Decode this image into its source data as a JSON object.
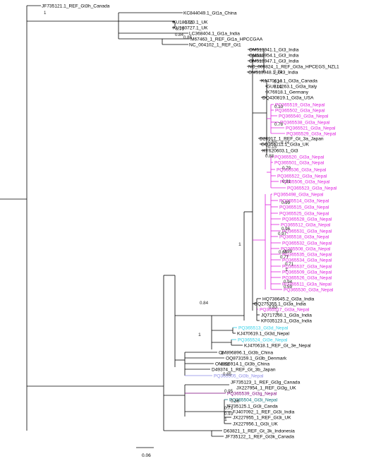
{
  "colors": {
    "default": "#000000",
    "magenta": "#e020e0",
    "cyan": "#30d0e8",
    "lavender": "#8a8ae6",
    "purple": "#7a007a",
    "teal": "#0a6e7a"
  },
  "scale_bar": {
    "label": "0.06"
  },
  "taxa": [
    {
      "label": "JF735121.1_REF_Gt3h_Canada",
      "color": "default"
    },
    {
      "label": "KC844049.1_Gt1a_China",
      "color": "default"
    },
    {
      "label": "KU180720.1_UK",
      "color": "default"
    },
    {
      "label": "KU180727.1_UK",
      "color": "default"
    },
    {
      "label": "LC368404.1_Gt1a_India",
      "color": "default"
    },
    {
      "label": "M67463_1_REF_Gt1a_HPCCGAA",
      "color": "default"
    },
    {
      "label": "NC_004102_1_REF_Gt1",
      "color": "default"
    },
    {
      "label": "OM513941.1_Gt3_India",
      "color": "default"
    },
    {
      "label": "OM513954.1_Gt3_India",
      "color": "default"
    },
    {
      "label": "OM513947.1_Gt3_India",
      "color": "default"
    },
    {
      "label": "NC_009824_1_REF_Gt3a_HPCEGS_NZL1",
      "color": "default"
    },
    {
      "label": "OM513948.1_Gt3_India",
      "color": "default"
    },
    {
      "label": "KJ470614.1_Gt3a_Canada",
      "color": "default"
    },
    {
      "label": "GU814263.1_Gt3a_Italy",
      "color": "default"
    },
    {
      "label": "X76918.1_Germany",
      "color": "default"
    },
    {
      "label": "DQ430819.1_Gt3a_USA",
      "color": "default"
    },
    {
      "label": "PQ365519_Gt3a_Nepal",
      "color": "magenta"
    },
    {
      "label": "PQ365502_Gt3a_Nepal",
      "color": "magenta"
    },
    {
      "label": "PQ365540_Gt3a_Nepal",
      "color": "magenta"
    },
    {
      "label": "PQ365538_Gt3a_Nepal",
      "color": "magenta"
    },
    {
      "label": "PQ365521_Gt3a_Nepal",
      "color": "magenta"
    },
    {
      "label": "PQ365529_Gt3a_Nepal",
      "color": "magenta"
    },
    {
      "label": "D28917_1_REF_Gt_3a_Japan",
      "color": "default"
    },
    {
      "label": "GQ356211.1_Gt3a_UK",
      "color": "default"
    },
    {
      "label": "KY620603.1_Gt3",
      "color": "default"
    },
    {
      "label": "PQ365520_Gt3a_Nepal",
      "color": "magenta"
    },
    {
      "label": "PQ365501_Gt3a_Nepal",
      "color": "magenta"
    },
    {
      "label": "PQ365536_Gt3a_Nepal",
      "color": "magenta"
    },
    {
      "label": "PQ365522_Gt3a_Nepal",
      "color": "magenta"
    },
    {
      "label": "PQ365506_Gt3a_Nepal",
      "color": "magenta"
    },
    {
      "label": "PQ365523_Gt3a_Nepal",
      "color": "magenta"
    },
    {
      "label": "PQ365498_Gt3a_Nepal",
      "color": "magenta"
    },
    {
      "label": "PQ365514_Gt3a_Nepal",
      "color": "magenta"
    },
    {
      "label": "PQ365515_Gt3a_Nepal",
      "color": "magenta"
    },
    {
      "label": "PQ365525_Gt3a_Nepal",
      "color": "magenta"
    },
    {
      "label": "PQ365528_Gt3a_Nepal",
      "color": "magenta"
    },
    {
      "label": "PQ365512_Gt3a_Nepal",
      "color": "magenta"
    },
    {
      "label": "PQ365531_Gt3a_Nepal",
      "color": "magenta"
    },
    {
      "label": "PQ365518_Gt3a_Nepal",
      "color": "magenta"
    },
    {
      "label": "PQ365532_Gt3a_Nepal",
      "color": "magenta"
    },
    {
      "label": "PQ365508_Gt3a_Nepal",
      "color": "magenta"
    },
    {
      "label": "PQ365535_Gt3a_Nepal",
      "color": "magenta"
    },
    {
      "label": "PQ365534_Gt3a_Nepal",
      "color": "magenta"
    },
    {
      "label": "PQ365537_Gt3a_Nepal",
      "color": "magenta"
    },
    {
      "label": "PQ365509_Gt3a_Nepal",
      "color": "magenta"
    },
    {
      "label": "PQ365526_Gt3a_Nepal",
      "color": "magenta"
    },
    {
      "label": "PQ365511_Gt3a_Nepal",
      "color": "magenta"
    },
    {
      "label": "PQ365530_Gt3a_Nepal",
      "color": "magenta"
    },
    {
      "label": "HQ738645.2_Gt3a_India",
      "color": "default"
    },
    {
      "label": "GQ275355.1_Gt3a_India",
      "color": "default"
    },
    {
      "label": "PQ365517_Gt3a_Nepal",
      "color": "magenta"
    },
    {
      "label": "JQ717260.1_Gt3a_India",
      "color": "default"
    },
    {
      "label": "KF035123.1_Gt3a_India",
      "color": "default"
    },
    {
      "label": "PQ365513_Gt3d_Nepal",
      "color": "cyan"
    },
    {
      "label": "KJ470619.1_Gt3d_Nepal",
      "color": "default"
    },
    {
      "label": "PQ365524_Gt3e_Nepal",
      "color": "cyan"
    },
    {
      "label": "KJ470618.1_REF_Gt_3e_Nepal",
      "color": "default"
    },
    {
      "label": "OM896896.1_Gt3b_China",
      "color": "default"
    },
    {
      "label": "OQ873159.1_Gt3b_Denmark",
      "color": "default"
    },
    {
      "label": "OM896914.1_Gt3b_China",
      "color": "default"
    },
    {
      "label": "D49374_1_REF_Gt_3b_Japan",
      "color": "default"
    },
    {
      "label": "PQ365505_Gt3b_Nepal",
      "color": "lavender"
    },
    {
      "label": "JF735123_1_REF_Gt3g_Canada",
      "color": "default"
    },
    {
      "label": "JX227954_1_REF_Gt3g_UK",
      "color": "default"
    },
    {
      "label": "PQ365539_Gt3g_Nepal",
      "color": "purple"
    },
    {
      "label": "PQ365504_Gt3i_Nepal",
      "color": "teal"
    },
    {
      "label": "JF735125.1_Gt3i_Canda",
      "color": "default"
    },
    {
      "label": "FJ407092_1_REF_Gt3i_India",
      "color": "default"
    },
    {
      "label": "JX227955_1_REF_Gt3i_UK",
      "color": "default"
    },
    {
      "label": "JX227956.1_Gt3i_UK",
      "color": "default"
    },
    {
      "label": "D63821_1_REF_Gt_3k_Indonesia",
      "color": "default"
    },
    {
      "label": "JF735122_1_REF_Gt3k_Canada",
      "color": "default"
    }
  ],
  "bootstrap": [
    {
      "label": "1"
    },
    {
      "label": "0.95"
    },
    {
      "label": "0.79"
    },
    {
      "label": "0.84"
    },
    {
      "label": "0.86"
    },
    {
      "label": "0.24"
    },
    {
      "label": "0.27"
    },
    {
      "label": "0.02"
    },
    {
      "label": "0.13"
    },
    {
      "label": "0.78"
    },
    {
      "label": "0.74"
    },
    {
      "label": "0.65"
    },
    {
      "label": "0.15"
    },
    {
      "label": "0.88"
    },
    {
      "label": "0.79"
    },
    {
      "label": "0.81"
    },
    {
      "label": "0.99"
    },
    {
      "label": "0.96"
    },
    {
      "label": "0.97"
    },
    {
      "label": "0.99"
    },
    {
      "label": "0.69"
    },
    {
      "label": "0.77"
    },
    {
      "label": "0.71"
    },
    {
      "label": "1"
    },
    {
      "label": "0.94"
    },
    {
      "label": "0.59"
    },
    {
      "label": "1"
    },
    {
      "label": "0.83"
    },
    {
      "label": "1"
    },
    {
      "label": "0.84"
    },
    {
      "label": "0.85"
    },
    {
      "label": "0.95"
    },
    {
      "label": "0.36"
    },
    {
      "label": "1"
    },
    {
      "label": "0.62"
    },
    {
      "label": "0.73"
    },
    {
      "label": "0.93"
    },
    {
      "label": "1"
    },
    {
      "label": "1"
    }
  ]
}
